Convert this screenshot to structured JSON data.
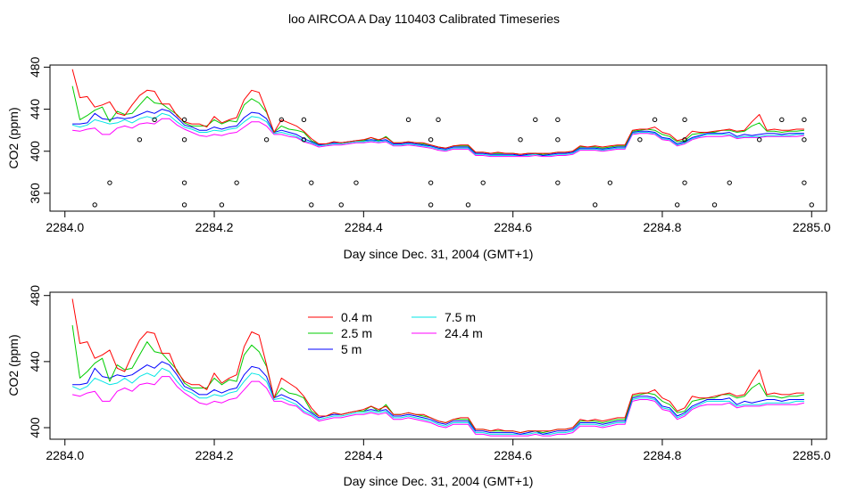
{
  "page": {
    "title": "loo AIRCOA A  Day 110403  Calibrated Timeseries"
  },
  "colors": {
    "0.4 m": "#ff0000",
    "2.5 m": "#00cd00",
    "5 m": "#0000ff",
    "7.5 m": "#00e5e5",
    "24.4 m": "#ff00ff",
    "markers": "#000000",
    "frame": "#000000"
  },
  "x_data": [
    2284.01,
    2284.02,
    2284.03,
    2284.04,
    2284.05,
    2284.06,
    2284.07,
    2284.08,
    2284.09,
    2284.1,
    2284.11,
    2284.12,
    2284.13,
    2284.14,
    2284.15,
    2284.16,
    2284.17,
    2284.18,
    2284.19,
    2284.2,
    2284.21,
    2284.22,
    2284.23,
    2284.24,
    2284.25,
    2284.26,
    2284.27,
    2284.28,
    2284.29,
    2284.3,
    2284.31,
    2284.32,
    2284.33,
    2284.34,
    2284.35,
    2284.36,
    2284.37,
    2284.38,
    2284.39,
    2284.4,
    2284.41,
    2284.42,
    2284.43,
    2284.44,
    2284.45,
    2284.46,
    2284.47,
    2284.48,
    2284.49,
    2284.5,
    2284.51,
    2284.52,
    2284.53,
    2284.54,
    2284.55,
    2284.56,
    2284.57,
    2284.58,
    2284.59,
    2284.6,
    2284.61,
    2284.62,
    2284.63,
    2284.64,
    2284.65,
    2284.66,
    2284.67,
    2284.68,
    2284.69,
    2284.7,
    2284.71,
    2284.72,
    2284.73,
    2284.74,
    2284.75,
    2284.76,
    2284.77,
    2284.78,
    2284.79,
    2284.8,
    2284.81,
    2284.82,
    2284.83,
    2284.84,
    2284.85,
    2284.86,
    2284.87,
    2284.88,
    2284.89,
    2284.9,
    2284.91,
    2284.92,
    2284.93,
    2284.94,
    2284.95,
    2284.96,
    2284.97,
    2284.98,
    2284.99
  ],
  "series": [
    {
      "name": "0.4 m",
      "values": [
        478,
        451,
        452,
        442,
        444,
        447,
        436,
        434,
        444,
        453,
        458,
        457,
        445,
        445,
        434,
        428,
        426,
        426,
        423,
        433,
        427,
        430,
        432,
        449,
        458,
        456,
        438,
        418,
        430,
        427,
        424,
        419,
        412,
        407,
        407,
        409,
        408,
        409,
        410,
        411,
        413,
        411,
        413,
        408,
        408,
        409,
        408,
        408,
        406,
        404,
        403,
        405,
        406,
        406,
        399,
        399,
        398,
        399,
        398,
        398,
        397,
        398,
        398,
        398,
        398,
        399,
        399,
        400,
        405,
        404,
        405,
        404,
        405,
        406,
        406,
        420,
        421,
        421,
        423,
        418,
        416,
        410,
        412,
        419,
        418,
        418,
        419,
        420,
        421,
        419,
        420,
        428,
        435,
        420,
        421,
        420,
        420,
        421,
        421
      ]
    },
    {
      "name": "2.5 m",
      "values": [
        462,
        430,
        434,
        439,
        442,
        428,
        438,
        435,
        436,
        444,
        452,
        446,
        445,
        440,
        435,
        427,
        424,
        424,
        424,
        430,
        426,
        429,
        428,
        444,
        450,
        446,
        437,
        418,
        424,
        421,
        420,
        418,
        410,
        407,
        407,
        409,
        408,
        409,
        410,
        410,
        413,
        410,
        414,
        408,
        408,
        409,
        408,
        407,
        406,
        404,
        403,
        405,
        405,
        405,
        399,
        399,
        398,
        398,
        398,
        398,
        397,
        398,
        398,
        397,
        398,
        399,
        399,
        400,
        404,
        404,
        404,
        403,
        404,
        405,
        405,
        419,
        420,
        421,
        420,
        416,
        414,
        409,
        410,
        416,
        417,
        418,
        418,
        420,
        420,
        418,
        419,
        424,
        427,
        419,
        419,
        418,
        419,
        419,
        420
      ]
    },
    {
      "name": "5 m",
      "values": [
        426,
        426,
        427,
        436,
        431,
        430,
        432,
        431,
        432,
        435,
        438,
        436,
        440,
        438,
        432,
        425,
        423,
        420,
        420,
        423,
        421,
        423,
        424,
        432,
        437,
        436,
        431,
        418,
        420,
        418,
        416,
        412,
        409,
        406,
        407,
        408,
        408,
        409,
        410,
        410,
        411,
        410,
        411,
        407,
        407,
        408,
        407,
        406,
        405,
        403,
        402,
        404,
        404,
        404,
        398,
        398,
        397,
        397,
        397,
        397,
        396,
        397,
        398,
        396,
        397,
        398,
        398,
        399,
        403,
        403,
        403,
        402,
        403,
        404,
        404,
        418,
        419,
        419,
        418,
        413,
        412,
        407,
        409,
        413,
        415,
        417,
        417,
        417,
        418,
        414,
        416,
        415,
        416,
        417,
        417,
        416,
        417,
        417,
        417
      ]
    },
    {
      "name": "7.5 m",
      "values": [
        425,
        423,
        425,
        430,
        428,
        426,
        427,
        430,
        427,
        431,
        433,
        431,
        436,
        434,
        428,
        423,
        421,
        418,
        418,
        420,
        419,
        421,
        422,
        428,
        433,
        432,
        428,
        417,
        418,
        416,
        414,
        410,
        408,
        405,
        406,
        407,
        407,
        408,
        409,
        409,
        410,
        409,
        410,
        406,
        406,
        407,
        406,
        405,
        404,
        402,
        401,
        403,
        403,
        403,
        397,
        397,
        396,
        396,
        396,
        396,
        396,
        396,
        397,
        396,
        396,
        397,
        397,
        398,
        402,
        402,
        402,
        401,
        402,
        403,
        403,
        417,
        418,
        418,
        417,
        412,
        411,
        406,
        408,
        412,
        414,
        416,
        416,
        416,
        416,
        413,
        414,
        414,
        414,
        415,
        415,
        415,
        415,
        416,
        416
      ]
    },
    {
      "name": "24.4 m",
      "values": [
        420,
        419,
        421,
        422,
        416,
        416,
        422,
        424,
        422,
        426,
        427,
        426,
        431,
        431,
        425,
        421,
        418,
        415,
        414,
        416,
        415,
        417,
        418,
        423,
        428,
        428,
        424,
        416,
        416,
        414,
        413,
        409,
        407,
        404,
        405,
        406,
        406,
        407,
        408,
        408,
        409,
        408,
        409,
        405,
        405,
        406,
        405,
        404,
        403,
        401,
        400,
        402,
        402,
        402,
        396,
        396,
        395,
        395,
        395,
        395,
        395,
        395,
        396,
        395,
        395,
        396,
        396,
        397,
        401,
        401,
        401,
        400,
        401,
        402,
        402,
        416,
        417,
        417,
        416,
        411,
        410,
        405,
        407,
        411,
        413,
        414,
        414,
        414,
        415,
        412,
        413,
        413,
        413,
        414,
        414,
        414,
        414,
        414,
        415
      ]
    }
  ],
  "markers": {
    "x": [
      2284.04,
      2284.06,
      2284.1,
      2284.12,
      2284.16,
      2284.16,
      2284.16,
      2284.16,
      2284.21,
      2284.23,
      2284.27,
      2284.29,
      2284.32,
      2284.32,
      2284.33,
      2284.33,
      2284.37,
      2284.39,
      2284.46,
      2284.49,
      2284.49,
      2284.49,
      2284.5,
      2284.54,
      2284.56,
      2284.61,
      2284.63,
      2284.66,
      2284.66,
      2284.66,
      2284.71,
      2284.73,
      2284.77,
      2284.79,
      2284.82,
      2284.83,
      2284.83,
      2284.83,
      2284.87,
      2284.89,
      2284.93,
      2284.96,
      2284.99,
      2284.99,
      2284.99,
      2285.0
    ],
    "y": [
      349,
      370,
      411,
      430,
      430,
      411,
      370,
      349,
      349,
      370,
      411,
      430,
      430,
      411,
      370,
      349,
      349,
      370,
      430,
      411,
      370,
      349,
      430,
      349,
      370,
      411,
      430,
      430,
      411,
      370,
      349,
      370,
      411,
      430,
      349,
      430,
      411,
      370,
      349,
      370,
      411,
      430,
      430,
      411,
      370,
      349
    ]
  },
  "chart_data": [
    {
      "type": "line",
      "title": "loo AIRCOA A  Day 110403  Calibrated Timeseries",
      "xlabel": "Day since Dec. 31, 2004 (GMT+1)",
      "ylabel": "CO2 (ppm)",
      "xlim": [
        2283.98,
        2285.02
      ],
      "ylim": [
        343,
        482
      ],
      "xticks": [
        "2284.0",
        "2284.2",
        "2284.4",
        "2284.6",
        "2284.8",
        "2285.0"
      ],
      "yticks": [
        "360",
        "400",
        "440",
        "480"
      ],
      "series_ref": "series",
      "extra_markers_ref": "markers",
      "grid": false,
      "legend": "none"
    },
    {
      "type": "line",
      "xlabel": "Day since Dec. 31, 2004 (GMT+1)",
      "ylabel": "CO2 (ppm)",
      "xlim": [
        2283.98,
        2285.02
      ],
      "ylim": [
        393,
        482
      ],
      "xticks": [
        "2284.0",
        "2284.2",
        "2284.4",
        "2284.6",
        "2284.8",
        "2285.0"
      ],
      "yticks": [
        "400",
        "440",
        "480"
      ],
      "series_ref": "series",
      "grid": false,
      "legend": "top-left",
      "legend_entries": [
        "0.4 m",
        "2.5 m",
        "5 m",
        "7.5 m",
        "24.4 m"
      ]
    }
  ]
}
